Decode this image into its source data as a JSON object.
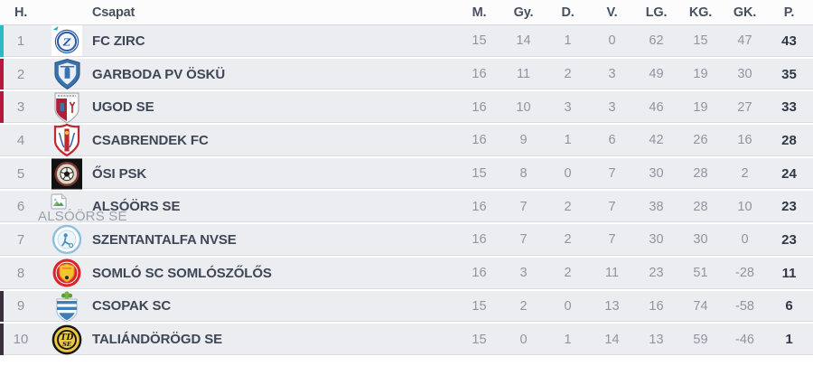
{
  "table": {
    "header": {
      "rank": "H.",
      "team": "Csapat",
      "stats": [
        "M.",
        "Gy.",
        "D.",
        "V.",
        "LG.",
        "KG.",
        "GK.",
        "P."
      ]
    },
    "accent_colors": {
      "teal": "#2fb7c5",
      "red": "#b8163c",
      "dark": "#3a2f3e"
    },
    "row_background": "#ecedf1",
    "teams": [
      {
        "rank": "1",
        "name": "FC ZIRC",
        "logo": "fc-zirc",
        "accent": "teal",
        "stats": [
          "15",
          "14",
          "1",
          "0",
          "62",
          "15",
          "47",
          "43"
        ]
      },
      {
        "rank": "2",
        "name": "GARBODA PV ÖSKÜ",
        "logo": "garboda-pv-osku",
        "accent": "red",
        "stats": [
          "16",
          "11",
          "2",
          "3",
          "49",
          "19",
          "30",
          "35"
        ]
      },
      {
        "rank": "3",
        "name": "UGOD SE",
        "logo": "ugod-se",
        "accent": "red",
        "stats": [
          "16",
          "10",
          "3",
          "3",
          "46",
          "19",
          "27",
          "33"
        ]
      },
      {
        "rank": "4",
        "name": "CSABRENDEK FC",
        "logo": "csabrendek-fc",
        "accent": "none",
        "stats": [
          "16",
          "9",
          "1",
          "6",
          "42",
          "26",
          "16",
          "28"
        ]
      },
      {
        "rank": "5",
        "name": "ŐSI PSK",
        "logo": "osi-psk",
        "accent": "none",
        "stats": [
          "15",
          "8",
          "0",
          "7",
          "30",
          "28",
          "2",
          "24"
        ]
      },
      {
        "rank": "6",
        "name": "ALSÓÖRS SE",
        "logo": "broken-image",
        "logo_alt_text": "ALSÓÖRS SE",
        "accent": "none",
        "stats": [
          "16",
          "7",
          "2",
          "7",
          "38",
          "28",
          "10",
          "23"
        ]
      },
      {
        "rank": "7",
        "name": "SZENTANTALFA NVSE",
        "logo": "szentantalfa-nvse",
        "accent": "none",
        "stats": [
          "16",
          "7",
          "2",
          "7",
          "30",
          "30",
          "0",
          "23"
        ]
      },
      {
        "rank": "8",
        "name": "SOMLÓ SC SOMLÓSZŐLŐS",
        "logo": "somlo-sc",
        "accent": "none",
        "stats": [
          "16",
          "3",
          "2",
          "11",
          "23",
          "51",
          "-28",
          "11"
        ]
      },
      {
        "rank": "9",
        "name": "CSOPAK SC",
        "logo": "csopak-sc",
        "accent": "dark",
        "stats": [
          "15",
          "2",
          "0",
          "13",
          "16",
          "74",
          "-58",
          "6"
        ]
      },
      {
        "rank": "10",
        "name": "TALIÁNDÖRÖGD SE",
        "logo": "taliandorogd-se",
        "accent": "dark",
        "stats": [
          "15",
          "0",
          "1",
          "14",
          "13",
          "59",
          "-46",
          "1"
        ]
      }
    ]
  }
}
